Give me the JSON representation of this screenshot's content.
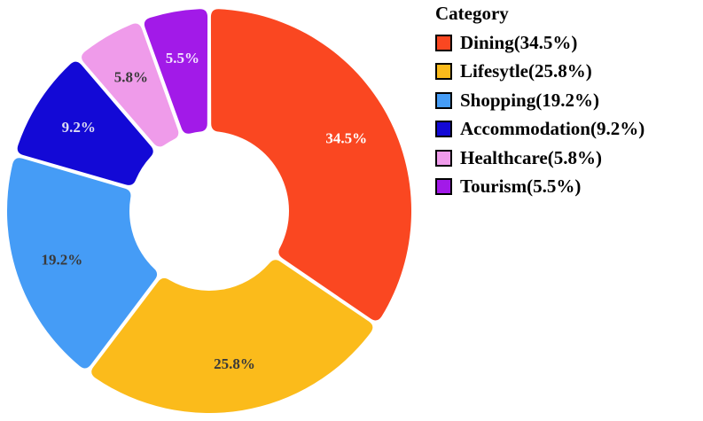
{
  "chart_data": {
    "type": "pie",
    "variant": "donut",
    "legend_title": "Category",
    "legend_position": "right",
    "start_angle_deg": 90,
    "direction": "clockwise",
    "slices": [
      {
        "category": "Dining",
        "value": 34.5,
        "label": "34.5%",
        "legend": "Dining(34.5%)",
        "color": "#fa4721",
        "label_color": "#ffffff"
      },
      {
        "category": "Lifesytle",
        "value": 25.8,
        "label": "25.8%",
        "legend": "Lifesytle(25.8%)",
        "color": "#fbbb1b",
        "label_color": "#3a3a3a"
      },
      {
        "category": "Shopping",
        "value": 19.2,
        "label": "19.2%",
        "legend": "Shopping(19.2%)",
        "color": "#459cf6",
        "label_color": "#3a3a3a"
      },
      {
        "category": "Accommodation",
        "value": 9.2,
        "label": "9.2%",
        "legend": "Accommodation(9.2%)",
        "color": "#1309d6",
        "label_color": "#dcdcf2"
      },
      {
        "category": "Healthcare",
        "value": 5.8,
        "label": "5.8%",
        "legend": "Healthcare(5.8%)",
        "color": "#ef9bea",
        "label_color": "#3a3a3a"
      },
      {
        "category": "Tourism",
        "value": 5.5,
        "label": "5.5%",
        "legend": "Tourism(5.5%)",
        "color": "#a21ae8",
        "label_color": "#f2e2ff"
      }
    ]
  }
}
